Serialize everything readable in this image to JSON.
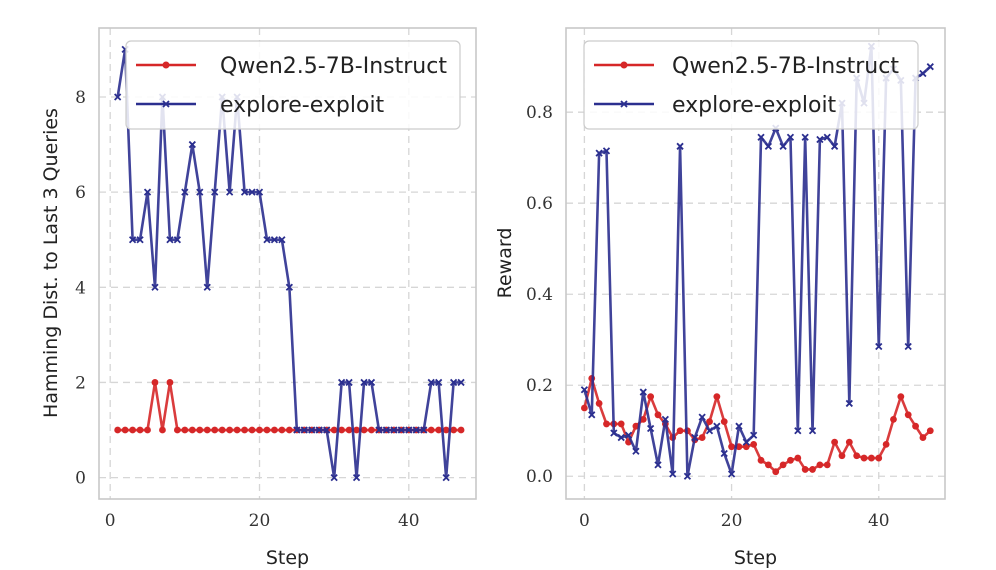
{
  "chart_data": [
    {
      "type": "line",
      "title": "",
      "xlabel": "Step",
      "ylabel": "Hamming Dist. to Last 3 Queries",
      "xlim": [
        -1.5,
        49
      ],
      "ylim": [
        -0.45,
        9.45
      ],
      "xticks": [
        0,
        20,
        40
      ],
      "yticks": [
        0,
        2,
        4,
        6,
        8
      ],
      "xtick_labels": [
        "0",
        "20",
        "40"
      ],
      "ytick_labels": [
        "0",
        "2",
        "4",
        "6",
        "8"
      ],
      "grid": true,
      "legend_position": "top-right",
      "series": [
        {
          "name": "Qwen2.5-7B-Instruct",
          "color": "#d62728",
          "marker": "circle",
          "x": [
            1,
            2,
            3,
            4,
            5,
            6,
            7,
            8,
            9,
            10,
            11,
            12,
            13,
            14,
            15,
            16,
            17,
            18,
            19,
            20,
            21,
            22,
            23,
            24,
            25,
            26,
            27,
            28,
            29,
            30,
            31,
            32,
            33,
            34,
            35,
            36,
            37,
            38,
            39,
            40,
            41,
            42,
            43,
            44,
            45,
            46,
            47
          ],
          "values": [
            1,
            1,
            1,
            1,
            1,
            2,
            1,
            2,
            1,
            1,
            1,
            1,
            1,
            1,
            1,
            1,
            1,
            1,
            1,
            1,
            1,
            1,
            1,
            1,
            1,
            1,
            1,
            1,
            1,
            1,
            1,
            1,
            1,
            1,
            1,
            1,
            1,
            1,
            1,
            1,
            1,
            1,
            1,
            1,
            1,
            1,
            1
          ]
        },
        {
          "name": "explore-exploit",
          "color": "#2b2f8f",
          "marker": "x",
          "x": [
            1,
            2,
            3,
            4,
            5,
            6,
            7,
            8,
            9,
            10,
            11,
            12,
            13,
            14,
            15,
            16,
            17,
            18,
            19,
            20,
            21,
            22,
            23,
            24,
            25,
            26,
            27,
            28,
            29,
            30,
            31,
            32,
            33,
            34,
            35,
            36,
            37,
            38,
            39,
            40,
            41,
            42,
            43,
            44,
            45,
            46,
            47
          ],
          "values": [
            8,
            9,
            5,
            5,
            6,
            4,
            8,
            5,
            5,
            6,
            7,
            6,
            4,
            6,
            8,
            6,
            8,
            6,
            6,
            6,
            5,
            5,
            5,
            4,
            1,
            1,
            1,
            1,
            1,
            0,
            2,
            2,
            0,
            2,
            2,
            1,
            1,
            1,
            1,
            1,
            1,
            1,
            2,
            2,
            0,
            2,
            2
          ]
        }
      ]
    },
    {
      "type": "line",
      "title": "",
      "xlabel": "Step",
      "ylabel": "Reward",
      "xlim": [
        -2.5,
        49
      ],
      "ylim": [
        -0.05,
        0.985
      ],
      "xticks": [
        0,
        20,
        40
      ],
      "yticks": [
        0.0,
        0.2,
        0.4,
        0.6,
        0.8
      ],
      "xtick_labels": [
        "0",
        "20",
        "40"
      ],
      "ytick_labels": [
        "0.0",
        "0.2",
        "0.4",
        "0.6",
        "0.8"
      ],
      "grid": true,
      "legend_position": "top-right",
      "series": [
        {
          "name": "Qwen2.5-7B-Instruct",
          "color": "#d62728",
          "marker": "circle",
          "x": [
            0,
            1,
            2,
            3,
            4,
            5,
            6,
            7,
            8,
            9,
            10,
            11,
            12,
            13,
            14,
            15,
            16,
            17,
            18,
            19,
            20,
            21,
            22,
            23,
            24,
            25,
            26,
            27,
            28,
            29,
            30,
            31,
            32,
            33,
            34,
            35,
            36,
            37,
            38,
            39,
            40,
            41,
            42,
            43,
            44,
            45,
            46,
            47
          ],
          "values": [
            0.15,
            0.215,
            0.16,
            0.115,
            0.115,
            0.115,
            0.075,
            0.11,
            0.125,
            0.175,
            0.135,
            0.115,
            0.085,
            0.1,
            0.1,
            0.08,
            0.085,
            0.12,
            0.175,
            0.12,
            0.065,
            0.065,
            0.065,
            0.07,
            0.035,
            0.025,
            0.01,
            0.025,
            0.035,
            0.04,
            0.015,
            0.015,
            0.025,
            0.025,
            0.075,
            0.045,
            0.075,
            0.045,
            0.04,
            0.04,
            0.04,
            0.07,
            0.125,
            0.175,
            0.135,
            0.11,
            0.085,
            0.1
          ]
        },
        {
          "name": "explore-exploit",
          "color": "#2b2f8f",
          "marker": "x",
          "x": [
            0,
            1,
            2,
            3,
            4,
            5,
            6,
            7,
            8,
            9,
            10,
            11,
            12,
            13,
            14,
            15,
            16,
            17,
            18,
            19,
            20,
            21,
            22,
            23,
            24,
            25,
            26,
            27,
            28,
            29,
            30,
            31,
            32,
            33,
            34,
            35,
            36,
            37,
            38,
            39,
            40,
            41,
            42,
            43,
            44,
            45,
            46,
            47
          ],
          "values": [
            0.19,
            0.135,
            0.71,
            0.715,
            0.095,
            0.085,
            0.09,
            0.055,
            0.185,
            0.105,
            0.025,
            0.125,
            0.005,
            0.725,
            0.0,
            0.085,
            0.13,
            0.1,
            0.11,
            0.05,
            0.005,
            0.11,
            0.075,
            0.09,
            0.745,
            0.725,
            0.765,
            0.725,
            0.745,
            0.1,
            0.745,
            0.1,
            0.74,
            0.745,
            0.725,
            0.82,
            0.16,
            0.875,
            0.82,
            0.945,
            0.285,
            0.875,
            0.895,
            0.87,
            0.285,
            0.875,
            0.885,
            0.9
          ]
        }
      ]
    }
  ]
}
